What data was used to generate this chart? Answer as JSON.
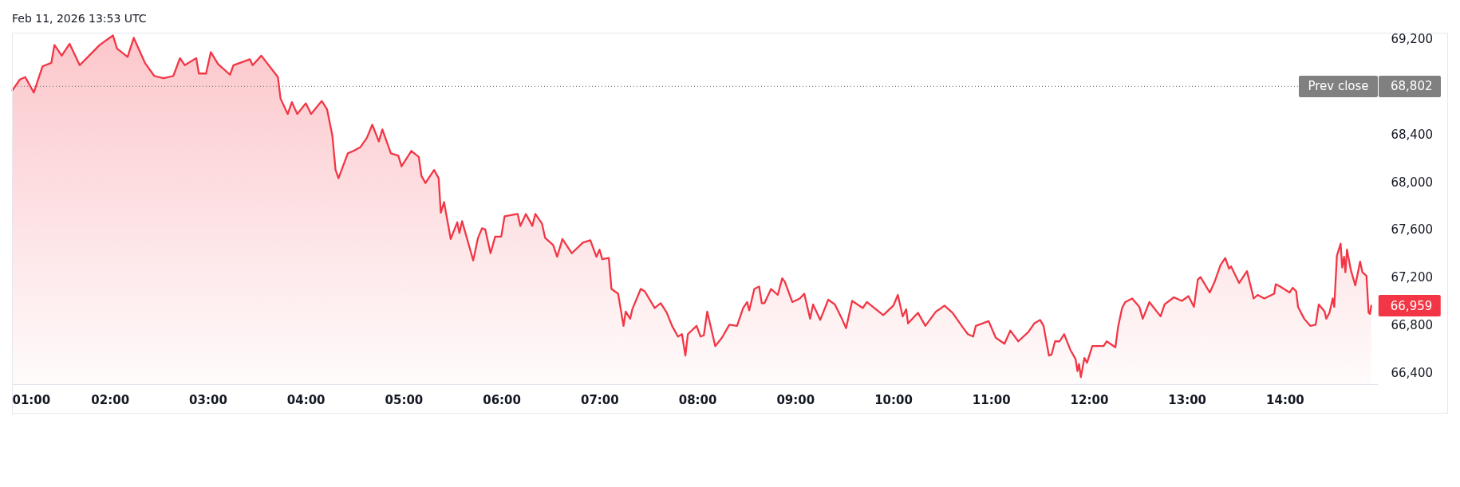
{
  "chart_data": {
    "type": "area",
    "title": "Feb 11, 2026 13:53 UTC",
    "color": "#f23645",
    "x": [
      1.005,
      1.081,
      1.136,
      1.223,
      1.312,
      1.402,
      1.434,
      1.508,
      1.589,
      1.692,
      1.788,
      1.896,
      2.032,
      2.073,
      2.181,
      2.244,
      2.358,
      2.453,
      2.548,
      2.648,
      2.716,
      2.765,
      2.882,
      2.909,
      2.982,
      3.031,
      3.105,
      3.227,
      3.262,
      3.43,
      3.458,
      3.547,
      3.716,
      3.743,
      3.816,
      3.859,
      3.914,
      4.001,
      4.055,
      4.164,
      4.218,
      4.272,
      4.305,
      4.335,
      4.43,
      4.489,
      4.557,
      4.625,
      4.68,
      4.747,
      4.783,
      4.87,
      4.946,
      4.979,
      5.079,
      5.155,
      5.182,
      5.223,
      5.312,
      5.358,
      5.38,
      5.413,
      5.481,
      5.548,
      5.57,
      5.597,
      5.711,
      5.76,
      5.801,
      5.834,
      5.888,
      5.935,
      5.997,
      6.031,
      6.165,
      6.192,
      6.249,
      6.315,
      6.345,
      6.413,
      6.445,
      6.527,
      6.568,
      6.622,
      6.717,
      6.831,
      6.907,
      6.969,
      7.001,
      7.029,
      7.096,
      7.123,
      7.191,
      7.246,
      7.268,
      7.314,
      7.336,
      7.422,
      7.463,
      7.564,
      7.626,
      7.688,
      7.742,
      7.802,
      7.843,
      7.878,
      7.903,
      7.992,
      8.033,
      8.066,
      8.101,
      8.183,
      8.251,
      8.327,
      8.405,
      8.468,
      8.509,
      8.53,
      8.582,
      8.631,
      8.658,
      8.685,
      8.753,
      8.821,
      8.867,
      8.894,
      8.97,
      9.046,
      9.092,
      9.152,
      9.182,
      9.255,
      9.337,
      9.405,
      9.465,
      9.519,
      9.581,
      9.69,
      9.731,
      9.899,
      10.002,
      10.048,
      10.097,
      10.133,
      10.152,
      10.253,
      10.329,
      10.437,
      10.491,
      10.524,
      10.606,
      10.709,
      10.763,
      10.817,
      10.844,
      10.975,
      11.048,
      11.137,
      11.197,
      11.278,
      11.382,
      11.441,
      11.501,
      11.536,
      11.591,
      11.618,
      11.653,
      11.7,
      11.746,
      11.809,
      11.863,
      11.882,
      11.898,
      11.917,
      11.953,
      11.98,
      12.034,
      12.094,
      12.149,
      12.181,
      12.27,
      12.297,
      12.338,
      12.37,
      12.441,
      12.514,
      12.549,
      12.617,
      12.731,
      12.772,
      12.867,
      12.948,
      13.016,
      13.072,
      13.112,
      13.139,
      13.234,
      13.283,
      13.343,
      13.392,
      13.43,
      13.451,
      13.533,
      13.614,
      13.682,
      13.723,
      13.79,
      13.891,
      13.907,
      13.953,
      14.048,
      14.081,
      14.116,
      14.135,
      14.198,
      14.26,
      14.315,
      14.347,
      14.407,
      14.423,
      14.456,
      14.489,
      14.505,
      14.532,
      14.57,
      14.586,
      14.605,
      14.619,
      14.635,
      14.674,
      14.72,
      14.769,
      14.793,
      14.834,
      14.856,
      14.87,
      14.883
    ],
    "values": [
      68770,
      68860,
      68880,
      68750,
      68970,
      69000,
      69150,
      69060,
      69160,
      68980,
      69060,
      69150,
      69230,
      69120,
      69050,
      69210,
      69000,
      68890,
      68870,
      68890,
      69040,
      68980,
      69040,
      68910,
      68910,
      69090,
      68990,
      68900,
      68980,
      69030,
      68980,
      69060,
      68880,
      68700,
      68570,
      68670,
      68570,
      68660,
      68570,
      68680,
      68610,
      68390,
      68100,
      68030,
      68240,
      68260,
      68290,
      68370,
      68480,
      68340,
      68440,
      68240,
      68220,
      68130,
      68260,
      68210,
      68050,
      67990,
      68100,
      68030,
      67740,
      67830,
      67520,
      67660,
      67570,
      67670,
      67340,
      67530,
      67610,
      67600,
      67400,
      67540,
      67540,
      67710,
      67730,
      67630,
      67730,
      67630,
      67730,
      67650,
      67530,
      67470,
      67370,
      67520,
      67400,
      67490,
      67510,
      67370,
      67430,
      67350,
      67360,
      67100,
      67060,
      66790,
      66910,
      66850,
      66930,
      67100,
      67080,
      66940,
      66980,
      66900,
      66790,
      66700,
      66720,
      66540,
      66720,
      66790,
      66700,
      66710,
      66910,
      66620,
      66690,
      66800,
      66790,
      66940,
      66990,
      66920,
      67100,
      67120,
      66980,
      66980,
      67100,
      67050,
      67190,
      67160,
      66990,
      67020,
      67060,
      66850,
      66970,
      66840,
      67010,
      66970,
      66870,
      66770,
      67000,
      66940,
      66990,
      66880,
      66960,
      67050,
      66870,
      66930,
      66810,
      66900,
      66790,
      66910,
      66940,
      66960,
      66900,
      66780,
      66720,
      66700,
      66790,
      66830,
      66690,
      66640,
      66750,
      66660,
      66740,
      66810,
      66840,
      66790,
      66540,
      66550,
      66660,
      66660,
      66720,
      66590,
      66510,
      66410,
      66470,
      66360,
      66520,
      66480,
      66620,
      66620,
      66620,
      66660,
      66610,
      66780,
      66940,
      66990,
      67020,
      66950,
      66850,
      66990,
      66870,
      66970,
      67030,
      67000,
      67040,
      66950,
      67180,
      67200,
      67070,
      67160,
      67300,
      67360,
      67270,
      67290,
      67150,
      67250,
      67020,
      67050,
      67020,
      67060,
      67140,
      67120,
      67070,
      67110,
      67080,
      66950,
      66850,
      66790,
      66800,
      66970,
      66910,
      66850,
      66900,
      67020,
      66950,
      67380,
      67480,
      67280,
      67370,
      67240,
      67430,
      67260,
      67130,
      67330,
      67240,
      67210,
      66900,
      66890,
      66959
    ],
    "xlim": [
      1,
      14.95
    ],
    "xticks": [
      {
        "value": 1,
        "label": "01:00"
      },
      {
        "value": 2,
        "label": "02:00"
      },
      {
        "value": 3,
        "label": "03:00"
      },
      {
        "value": 4,
        "label": "04:00"
      },
      {
        "value": 5,
        "label": "05:00"
      },
      {
        "value": 6,
        "label": "06:00"
      },
      {
        "value": 7,
        "label": "07:00"
      },
      {
        "value": 8,
        "label": "08:00"
      },
      {
        "value": 9,
        "label": "09:00"
      },
      {
        "value": 10,
        "label": "10:00"
      },
      {
        "value": 11,
        "label": "11:00"
      },
      {
        "value": 12,
        "label": "12:00"
      },
      {
        "value": 13,
        "label": "13:00"
      },
      {
        "value": 14,
        "label": "14:00"
      }
    ],
    "ylim": [
      66300,
      69260
    ],
    "yticks": [
      {
        "value": 66400,
        "label": "66,400"
      },
      {
        "value": 66800,
        "label": "66,800"
      },
      {
        "value": 67200,
        "label": "67,200"
      },
      {
        "value": 67600,
        "label": "67,600"
      },
      {
        "value": 68000,
        "label": "68,000"
      },
      {
        "value": 68400,
        "label": "68,400"
      },
      {
        "value": 69200,
        "label": "69,200"
      }
    ],
    "ref_lines": [
      {
        "axis": "y",
        "value": 68802,
        "label": "Prev close",
        "color": "#808080",
        "line_style": "dotted"
      }
    ],
    "annotations": [
      "68,802",
      {
        "text": "66,959",
        "x": 14.883,
        "y": 66959
      }
    ]
  }
}
